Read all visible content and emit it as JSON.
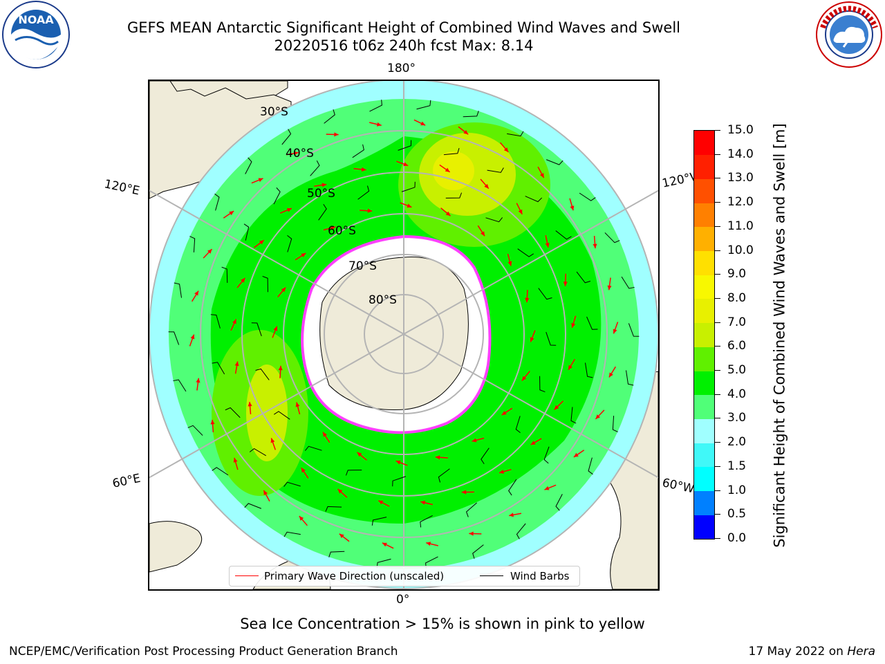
{
  "header": {
    "title_line1": "GEFS MEAN Antarctic Significant Height of Combined Wind Waves and Swell",
    "title_line2": "20220516 t06z 240h fcst   Max: 8.14"
  },
  "logos": {
    "noaa": {
      "text": "NOAA",
      "ring_text": "NATIONAL OCEANIC AND ATMOSPHERIC ADMINISTRATION · U.S. DEPARTMENT OF COMMERCE"
    },
    "nws": {
      "ring_text": "NATIONAL WEATHER SERVICE"
    }
  },
  "map": {
    "projection": "south-polar-stereographic",
    "longitude_labels": {
      "top": "180°",
      "bottom": "0°",
      "upper_left": "120°E",
      "lower_left": "60°E",
      "upper_right": "120°W",
      "lower_right": "60°W"
    },
    "latitude_labels": [
      "30°S",
      "40°S",
      "50°S",
      "60°S",
      "70°S",
      "80°S"
    ],
    "colors": {
      "land": "#efebd9",
      "ice": "#ffffff",
      "grid": "#b4b4b4",
      "coast": "#000000",
      "wave_arrow": "#ff0000",
      "wind_barb": "#000000"
    },
    "legend": {
      "wave_direction": "Primary Wave Direction (unscaled)",
      "wind_barbs": "Wind Barbs"
    }
  },
  "colorbar": {
    "label": "Significant Height of Combined Wind Waves and Swell [m]",
    "ticks": [
      "0.0",
      "0.5",
      "1.0",
      "1.5",
      "2.0",
      "3.0",
      "4.0",
      "5.0",
      "6.0",
      "7.0",
      "8.0",
      "9.0",
      "10.0",
      "11.0",
      "12.0",
      "13.0",
      "14.0",
      "15.0"
    ],
    "colors": [
      "#0000ff",
      "#0080ff",
      "#00ffff",
      "#40f8f8",
      "#a0ffff",
      "#50ff78",
      "#00f000",
      "#60f000",
      "#c8f000",
      "#e8f000",
      "#f8f800",
      "#ffe000",
      "#ffb000",
      "#ff8000",
      "#ff5000",
      "#ff2000",
      "#ff0000"
    ]
  },
  "notes": {
    "sea_ice": "Sea Ice Concentration > 15% is shown in pink to yellow"
  },
  "footer": {
    "left": "NCEP/EMC/Verification Post Processing Product Generation Branch",
    "right_date": "17 May 2022 on",
    "right_host": "Hera"
  }
}
